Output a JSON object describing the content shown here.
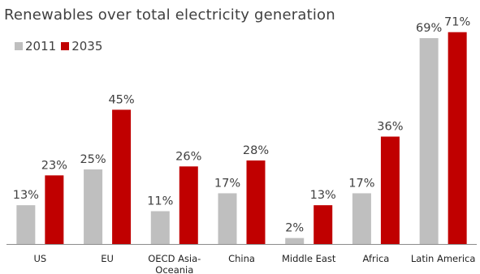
{
  "chart_data": {
    "type": "bar",
    "title": "Renewables over total electricity generation",
    "xlabel": "",
    "ylabel": "",
    "ylim": [
      0,
      72
    ],
    "legend_position": "top-left",
    "grid": false,
    "categories": [
      "US",
      "EU",
      "OECD Asia-Oceania",
      "China",
      "Middle East",
      "Africa",
      "Latin America"
    ],
    "category_lines": [
      [
        "US"
      ],
      [
        "EU"
      ],
      [
        "OECD Asia-",
        "Oceania"
      ],
      [
        "China"
      ],
      [
        "Middle East"
      ],
      [
        "Africa"
      ],
      [
        "Latin America"
      ]
    ],
    "series": [
      {
        "name": "2011",
        "color": "#bfbfbf",
        "values": [
          13,
          25,
          11,
          17,
          2,
          17,
          69
        ],
        "labels": [
          "13%",
          "25%",
          "11%",
          "17%",
          "2%",
          "17%",
          "69%"
        ]
      },
      {
        "name": "2035",
        "color": "#c00000",
        "values": [
          23,
          45,
          26,
          28,
          13,
          36,
          71
        ],
        "labels": [
          "23%",
          "45%",
          "26%",
          "28%",
          "13%",
          "36%",
          "71%"
        ]
      }
    ]
  }
}
